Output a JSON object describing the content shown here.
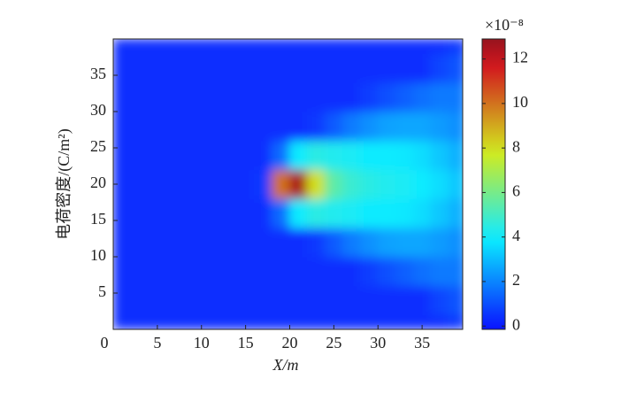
{
  "chart_data": {
    "type": "heatmap",
    "x_label": "X/m",
    "y_label": "电荷密度/(C/m²)",
    "colorbar_label": "×10⁻⁸",
    "colormap": "jet",
    "x": [
      0,
      2,
      4,
      6,
      8,
      10,
      12,
      14,
      16,
      18,
      20,
      22,
      24,
      26,
      28,
      30,
      32,
      34,
      36,
      38,
      40
    ],
    "y": [
      0,
      2,
      6,
      10,
      14,
      18,
      22,
      26,
      30,
      34,
      38,
      40
    ],
    "values": [
      [
        0.4,
        0.4,
        0.4,
        0.4,
        0.4,
        0.4,
        0.4,
        0.4,
        0.4,
        0.4,
        0.4,
        0.4,
        0.4,
        0.4,
        0.4,
        0.4,
        0.4,
        0.4,
        0.4,
        0.6
      ],
      [
        0.4,
        0.4,
        0.4,
        0.4,
        0.4,
        0.4,
        0.4,
        0.4,
        0.4,
        0.4,
        0.4,
        0.4,
        0.4,
        0.4,
        0.4,
        0.4,
        0.4,
        0.4,
        0.8,
        1.1
      ],
      [
        0.4,
        0.4,
        0.4,
        0.4,
        0.4,
        0.4,
        0.4,
        0.4,
        0.4,
        0.4,
        0.4,
        0.4,
        0.4,
        0.4,
        0.7,
        1.0,
        1.3,
        1.6,
        1.8,
        1.8
      ],
      [
        0.4,
        0.4,
        0.4,
        0.4,
        0.4,
        0.4,
        0.4,
        0.4,
        0.4,
        0.4,
        0.4,
        0.6,
        1.2,
        1.8,
        2.2,
        2.5,
        2.6,
        2.6,
        2.4,
        2.2
      ],
      [
        0.4,
        0.4,
        0.4,
        0.4,
        0.4,
        0.4,
        0.4,
        0.4,
        0.4,
        1.5,
        4.0,
        4.5,
        4.3,
        4.2,
        4.0,
        4.0,
        3.8,
        3.6,
        3.2,
        2.8
      ],
      [
        0.4,
        0.4,
        0.4,
        0.4,
        0.4,
        0.4,
        0.4,
        0.4,
        0.6,
        10,
        12.5,
        8,
        5.5,
        4.8,
        4.5,
        4.3,
        4.2,
        4.0,
        3.6,
        3.2
      ],
      [
        0.4,
        0.4,
        0.4,
        0.4,
        0.4,
        0.4,
        0.4,
        0.4,
        0.4,
        1.5,
        4.0,
        4.5,
        4.3,
        4.2,
        4.0,
        4.0,
        3.8,
        3.6,
        3.2,
        2.8
      ],
      [
        0.4,
        0.4,
        0.4,
        0.4,
        0.4,
        0.4,
        0.4,
        0.4,
        0.4,
        0.4,
        0.4,
        0.6,
        1.2,
        1.8,
        2.2,
        2.5,
        2.6,
        2.6,
        2.4,
        2.2
      ],
      [
        0.4,
        0.4,
        0.4,
        0.4,
        0.4,
        0.4,
        0.4,
        0.4,
        0.4,
        0.4,
        0.4,
        0.4,
        0.4,
        0.4,
        0.7,
        1.0,
        1.3,
        1.6,
        1.8,
        1.8
      ],
      [
        0.4,
        0.4,
        0.4,
        0.4,
        0.4,
        0.4,
        0.4,
        0.4,
        0.4,
        0.4,
        0.4,
        0.4,
        0.4,
        0.4,
        0.4,
        0.4,
        0.4,
        0.4,
        0.8,
        1.1
      ],
      [
        0.4,
        0.4,
        0.4,
        0.4,
        0.4,
        0.4,
        0.4,
        0.4,
        0.4,
        0.4,
        0.4,
        0.4,
        0.4,
        0.4,
        0.4,
        0.4,
        0.4,
        0.4,
        0.4,
        0.6
      ]
    ],
    "xlim": [
      0,
      39.6
    ],
    "xticks": [
      0,
      5,
      10,
      15,
      20,
      25,
      30,
      35
    ],
    "ylim": [
      0,
      40
    ],
    "yticks": [
      5,
      10,
      15,
      20,
      25,
      30,
      35
    ],
    "clim": [
      -0.15,
      12.9
    ],
    "cticks": [
      0,
      2,
      4,
      6,
      8,
      10,
      12
    ]
  }
}
